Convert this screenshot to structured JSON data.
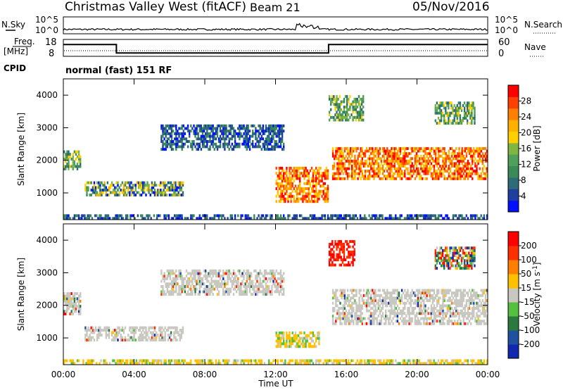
{
  "header": {
    "station": "Christmas Valley West (fitACF)",
    "beam": "Beam 21",
    "date": "05/Nov/2016"
  },
  "status_panels": {
    "nsky_label": "N.Sky",
    "nsearch_label": "N.Search",
    "noise_ticks": [
      "10^5",
      "10^0"
    ],
    "freq_label_1": "Freq.",
    "freq_label_2": "[MHz]",
    "freq_ticks": [
      "18",
      "8"
    ],
    "nave_label": "Nave",
    "nave_ticks": [
      "60",
      "0"
    ],
    "cpid_label": "CPID",
    "cpid_text": "normal (fast) 151 RF"
  },
  "panels": {
    "ylabel": "Slant Range [km]",
    "yticks": [
      "4000",
      "3000",
      "2000",
      "1000"
    ],
    "xlabel": "Time UT",
    "xticks": [
      "00:00",
      "04:00",
      "08:00",
      "12:00",
      "16:00",
      "20:00",
      "00:00"
    ],
    "power_label": "Power [dB]",
    "power_ticks": [
      "28",
      "24",
      "20",
      "16",
      "12",
      "8",
      "4"
    ],
    "velocity_label": "Velocity [m s",
    "velocity_sup": "-1",
    "velocity_label_end": "]",
    "velocity_ticks": [
      "200",
      "100",
      "50",
      "15",
      "-15",
      "-50",
      "-100",
      "-200"
    ]
  },
  "colors": {
    "power_scale": [
      "#0010ff",
      "#1f3fa0",
      "#2e6b78",
      "#3a8a5a",
      "#4fa05a",
      "#7fb540",
      "#ffd000",
      "#ffb000",
      "#ff8000",
      "#ff4000",
      "#ff0000"
    ],
    "velocity_scale": [
      "#1028b0",
      "#2050a0",
      "#2a7a40",
      "#55c040",
      "#c8c8c0",
      "#ffc000",
      "#ff8000",
      "#ff3000",
      "#ff0000"
    ]
  },
  "chart_data": {
    "type": "heatmap",
    "x_range_hours": [
      0,
      24
    ],
    "y_range_km": [
      180,
      4500
    ],
    "freq_mhz_steps": [
      [
        0,
        3,
        15
      ],
      [
        3,
        15,
        10
      ],
      [
        15,
        24,
        15
      ]
    ],
    "power_regions": [
      {
        "t0": 0.0,
        "t1": 1.0,
        "r0": 1700,
        "r1": 2300,
        "level": "mid"
      },
      {
        "t0": 1.2,
        "t1": 6.8,
        "r0": 900,
        "r1": 1350,
        "level": "mixed"
      },
      {
        "t0": 5.5,
        "t1": 12.5,
        "r0": 2300,
        "r1": 3100,
        "level": "low"
      },
      {
        "t0": 12.0,
        "t1": 15.0,
        "r0": 700,
        "r1": 1800,
        "level": "high"
      },
      {
        "t0": 15.2,
        "t1": 24.0,
        "r0": 1400,
        "r1": 2400,
        "level": "high"
      },
      {
        "t0": 15.0,
        "t1": 17.0,
        "r0": 3200,
        "r1": 4000,
        "level": "mid"
      },
      {
        "t0": 21.0,
        "t1": 23.3,
        "r0": 3100,
        "r1": 3800,
        "level": "mid"
      },
      {
        "t0": 0.0,
        "t1": 24.0,
        "r0": 180,
        "r1": 350,
        "level": "low"
      }
    ],
    "velocity_regions": [
      {
        "t0": 0.0,
        "t1": 1.0,
        "r0": 1700,
        "r1": 2400,
        "class": "near-zero"
      },
      {
        "t0": 1.2,
        "t1": 6.8,
        "r0": 900,
        "r1": 1350,
        "class": "near-zero"
      },
      {
        "t0": 5.5,
        "t1": 12.5,
        "r0": 2300,
        "r1": 3100,
        "class": "near-zero"
      },
      {
        "t0": 12.0,
        "t1": 14.5,
        "r0": 700,
        "r1": 1200,
        "class": "slightly-negative"
      },
      {
        "t0": 15.2,
        "t1": 24.0,
        "r0": 1400,
        "r1": 2500,
        "class": "near-zero"
      },
      {
        "t0": 15.0,
        "t1": 16.5,
        "r0": 3200,
        "r1": 4000,
        "class": "strongly-negative"
      },
      {
        "t0": 21.0,
        "t1": 23.3,
        "r0": 3100,
        "r1": 3800,
        "class": "mixed"
      },
      {
        "t0": 0.0,
        "t1": 24.0,
        "r0": 180,
        "r1": 350,
        "class": "slightly-negative"
      }
    ]
  }
}
